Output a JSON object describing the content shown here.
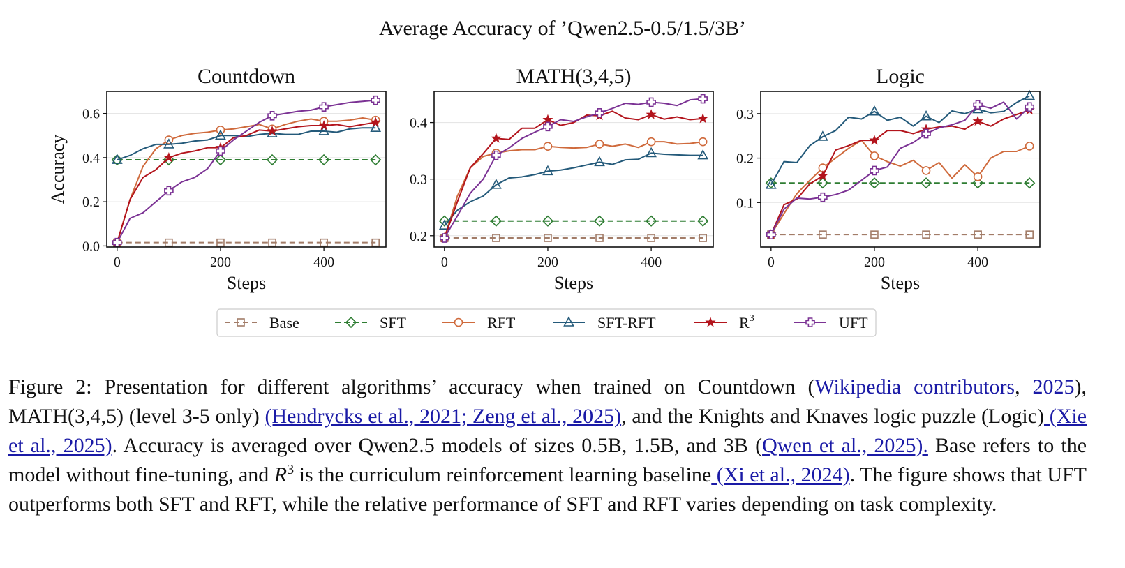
{
  "suptitle": "Average Accuracy of ’Qwen2.5-0.5/1.5/3B’",
  "chart_data": [
    {
      "type": "line",
      "title": "Countdown",
      "xlabel": "Steps",
      "ylabel": "Accuracy",
      "xlim": [
        -20,
        520
      ],
      "ylim": [
        -0.005,
        0.7
      ],
      "xticks": [
        0,
        200,
        400
      ],
      "xtick_labels": [
        "0",
        "200",
        "400"
      ],
      "yticks": [
        0.0,
        0.2,
        0.4,
        0.6
      ],
      "ytick_labels": [
        "0.0",
        "0.2",
        "0.4",
        "0.6"
      ],
      "series": [
        {
          "name": "Base",
          "x": [
            0,
            100,
            200,
            300,
            400,
            500
          ],
          "y": [
            0.015,
            0.015,
            0.015,
            0.015,
            0.015,
            0.015
          ],
          "markers_at": [
            0,
            100,
            200,
            300,
            400,
            500
          ]
        },
        {
          "name": "SFT",
          "x": [
            0,
            100,
            200,
            300,
            400,
            500
          ],
          "y": [
            0.39,
            0.39,
            0.39,
            0.39,
            0.39,
            0.39
          ],
          "markers_at": [
            0,
            100,
            200,
            300,
            400,
            500
          ]
        },
        {
          "name": "RFT",
          "x": [
            0,
            25,
            50,
            75,
            100,
            125,
            150,
            175,
            200,
            225,
            250,
            275,
            300,
            325,
            350,
            375,
            400,
            425,
            450,
            475,
            500
          ],
          "y": [
            0.015,
            0.21,
            0.36,
            0.44,
            0.48,
            0.5,
            0.51,
            0.515,
            0.525,
            0.53,
            0.54,
            0.55,
            0.53,
            0.55,
            0.565,
            0.575,
            0.565,
            0.565,
            0.57,
            0.58,
            0.57
          ],
          "markers_at": [
            0,
            100,
            200,
            300,
            400,
            500
          ]
        },
        {
          "name": "SFT-RFT",
          "x": [
            0,
            25,
            50,
            75,
            100,
            125,
            150,
            175,
            200,
            225,
            250,
            275,
            300,
            325,
            350,
            375,
            400,
            425,
            450,
            475,
            500
          ],
          "y": [
            0.39,
            0.41,
            0.44,
            0.46,
            0.46,
            0.465,
            0.475,
            0.48,
            0.5,
            0.5,
            0.495,
            0.505,
            0.51,
            0.505,
            0.505,
            0.52,
            0.52,
            0.515,
            0.53,
            0.535,
            0.535
          ],
          "markers_at": [
            0,
            100,
            200,
            300,
            400,
            500
          ]
        },
        {
          "name": "R³",
          "x": [
            0,
            25,
            50,
            75,
            100,
            125,
            150,
            175,
            200,
            225,
            250,
            275,
            300,
            325,
            350,
            375,
            400,
            425,
            450,
            475,
            500
          ],
          "y": [
            0.015,
            0.21,
            0.31,
            0.345,
            0.4,
            0.42,
            0.43,
            0.445,
            0.445,
            0.49,
            0.5,
            0.525,
            0.52,
            0.53,
            0.54,
            0.545,
            0.545,
            0.55,
            0.54,
            0.55,
            0.56
          ],
          "markers_at": [
            0,
            100,
            200,
            300,
            400,
            500
          ]
        },
        {
          "name": "UFT",
          "x": [
            0,
            25,
            50,
            75,
            100,
            125,
            150,
            175,
            200,
            225,
            250,
            275,
            300,
            325,
            350,
            375,
            400,
            425,
            450,
            475,
            500
          ],
          "y": [
            0.015,
            0.125,
            0.15,
            0.2,
            0.25,
            0.29,
            0.31,
            0.35,
            0.43,
            0.48,
            0.52,
            0.56,
            0.59,
            0.6,
            0.61,
            0.615,
            0.63,
            0.64,
            0.65,
            0.655,
            0.66
          ],
          "markers_at": [
            0,
            100,
            200,
            300,
            400,
            500
          ]
        }
      ]
    },
    {
      "type": "line",
      "title": "MATH(3,4,5)",
      "xlabel": "Steps",
      "ylabel": "",
      "xlim": [
        -20,
        520
      ],
      "ylim": [
        0.18,
        0.455
      ],
      "xticks": [
        0,
        200,
        400
      ],
      "xtick_labels": [
        "0",
        "200",
        "400"
      ],
      "yticks": [
        0.2,
        0.3,
        0.4
      ],
      "ytick_labels": [
        "0.2",
        "0.3",
        "0.4"
      ],
      "series": [
        {
          "name": "Base",
          "x": [
            0,
            100,
            200,
            300,
            400,
            500
          ],
          "y": [
            0.196,
            0.196,
            0.196,
            0.196,
            0.196,
            0.196
          ],
          "markers_at": [
            0,
            100,
            200,
            300,
            400,
            500
          ]
        },
        {
          "name": "SFT",
          "x": [
            0,
            100,
            200,
            300,
            400,
            500
          ],
          "y": [
            0.226,
            0.226,
            0.226,
            0.226,
            0.226,
            0.226
          ],
          "markers_at": [
            0,
            100,
            200,
            300,
            400,
            500
          ]
        },
        {
          "name": "RFT",
          "x": [
            0,
            25,
            50,
            75,
            100,
            125,
            150,
            175,
            200,
            225,
            250,
            275,
            300,
            325,
            350,
            375,
            400,
            425,
            450,
            475,
            500
          ],
          "y": [
            0.196,
            0.27,
            0.32,
            0.34,
            0.346,
            0.35,
            0.352,
            0.352,
            0.358,
            0.356,
            0.355,
            0.356,
            0.362,
            0.358,
            0.362,
            0.356,
            0.366,
            0.366,
            0.362,
            0.363,
            0.366
          ],
          "markers_at": [
            0,
            100,
            200,
            300,
            400,
            500
          ]
        },
        {
          "name": "SFT-RFT",
          "x": [
            0,
            25,
            50,
            75,
            100,
            125,
            150,
            175,
            200,
            225,
            250,
            275,
            300,
            325,
            350,
            375,
            400,
            425,
            450,
            475,
            500
          ],
          "y": [
            0.218,
            0.245,
            0.26,
            0.27,
            0.29,
            0.302,
            0.304,
            0.308,
            0.314,
            0.316,
            0.32,
            0.325,
            0.33,
            0.326,
            0.334,
            0.335,
            0.346,
            0.344,
            0.343,
            0.342,
            0.342
          ],
          "markers_at": [
            0,
            100,
            200,
            300,
            400,
            500
          ]
        },
        {
          "name": "R³",
          "x": [
            0,
            25,
            50,
            75,
            100,
            125,
            150,
            175,
            200,
            225,
            250,
            275,
            300,
            325,
            350,
            375,
            400,
            425,
            450,
            475,
            500
          ],
          "y": [
            0.196,
            0.26,
            0.32,
            0.345,
            0.372,
            0.37,
            0.39,
            0.39,
            0.405,
            0.395,
            0.4,
            0.413,
            0.412,
            0.42,
            0.408,
            0.405,
            0.414,
            0.406,
            0.41,
            0.405,
            0.407
          ],
          "markers_at": [
            0,
            100,
            200,
            300,
            400,
            500
          ]
        },
        {
          "name": "UFT",
          "x": [
            0,
            25,
            50,
            75,
            100,
            125,
            150,
            175,
            200,
            225,
            250,
            275,
            300,
            325,
            350,
            375,
            400,
            425,
            450,
            475,
            500
          ],
          "y": [
            0.196,
            0.235,
            0.275,
            0.3,
            0.342,
            0.355,
            0.372,
            0.383,
            0.393,
            0.405,
            0.402,
            0.41,
            0.417,
            0.425,
            0.434,
            0.432,
            0.436,
            0.434,
            0.43,
            0.44,
            0.442
          ],
          "markers_at": [
            0,
            100,
            200,
            300,
            400,
            500
          ]
        }
      ]
    },
    {
      "type": "line",
      "title": "Logic",
      "xlabel": "Steps",
      "ylabel": "",
      "xlim": [
        -20,
        520
      ],
      "ylim": [
        0.0,
        0.35
      ],
      "xticks": [
        0,
        200,
        400
      ],
      "xtick_labels": [
        "0",
        "200",
        "400"
      ],
      "yticks": [
        0.1,
        0.2,
        0.3
      ],
      "ytick_labels": [
        "0.1",
        "0.2",
        "0.3"
      ],
      "series": [
        {
          "name": "Base",
          "x": [
            0,
            100,
            200,
            300,
            400,
            500
          ],
          "y": [
            0.028,
            0.028,
            0.028,
            0.028,
            0.028,
            0.028
          ],
          "markers_at": [
            0,
            100,
            200,
            300,
            400,
            500
          ]
        },
        {
          "name": "SFT",
          "x": [
            0,
            100,
            200,
            300,
            400,
            500
          ],
          "y": [
            0.144,
            0.144,
            0.144,
            0.144,
            0.144,
            0.144
          ],
          "markers_at": [
            0,
            100,
            200,
            300,
            400,
            500
          ]
        },
        {
          "name": "RFT",
          "x": [
            0,
            25,
            50,
            75,
            100,
            125,
            150,
            175,
            200,
            225,
            250,
            275,
            300,
            325,
            350,
            375,
            400,
            425,
            450,
            475,
            500
          ],
          "y": [
            0.028,
            0.075,
            0.12,
            0.15,
            0.178,
            0.2,
            0.222,
            0.24,
            0.205,
            0.192,
            0.182,
            0.195,
            0.172,
            0.19,
            0.155,
            0.185,
            0.158,
            0.2,
            0.215,
            0.215,
            0.227
          ],
          "markers_at": [
            0,
            100,
            200,
            300,
            400,
            500
          ]
        },
        {
          "name": "SFT-RFT",
          "x": [
            0,
            25,
            50,
            75,
            100,
            125,
            150,
            175,
            200,
            225,
            250,
            275,
            300,
            325,
            350,
            375,
            400,
            425,
            450,
            475,
            500
          ],
          "y": [
            0.14,
            0.192,
            0.19,
            0.228,
            0.248,
            0.262,
            0.292,
            0.288,
            0.305,
            0.285,
            0.292,
            0.272,
            0.294,
            0.28,
            0.306,
            0.3,
            0.31,
            0.302,
            0.305,
            0.325,
            0.34
          ],
          "markers_at": [
            0,
            100,
            200,
            300,
            400,
            500
          ]
        },
        {
          "name": "R³",
          "x": [
            0,
            25,
            50,
            75,
            100,
            125,
            150,
            175,
            200,
            225,
            250,
            275,
            300,
            325,
            350,
            375,
            400,
            425,
            450,
            475,
            500
          ],
          "y": [
            0.028,
            0.095,
            0.108,
            0.142,
            0.16,
            0.218,
            0.228,
            0.24,
            0.24,
            0.262,
            0.262,
            0.255,
            0.265,
            0.27,
            0.272,
            0.265,
            0.283,
            0.272,
            0.288,
            0.298,
            0.308
          ],
          "markers_at": [
            0,
            100,
            200,
            300,
            400,
            500
          ]
        },
        {
          "name": "UFT",
          "x": [
            0,
            25,
            50,
            75,
            100,
            125,
            150,
            175,
            200,
            225,
            250,
            275,
            300,
            325,
            350,
            375,
            400,
            425,
            450,
            475,
            500
          ],
          "y": [
            0.028,
            0.085,
            0.11,
            0.108,
            0.112,
            0.118,
            0.128,
            0.15,
            0.172,
            0.18,
            0.222,
            0.235,
            0.255,
            0.268,
            0.275,
            0.285,
            0.32,
            0.312,
            0.326,
            0.288,
            0.315
          ],
          "markers_at": [
            0,
            100,
            200,
            300,
            400,
            500
          ]
        }
      ]
    }
  ],
  "legend": {
    "entries": [
      {
        "name": "Base",
        "label": "Base"
      },
      {
        "name": "SFT",
        "label": "SFT"
      },
      {
        "name": "RFT",
        "label": "RFT"
      },
      {
        "name": "SFT-RFT",
        "label": "SFT-RFT"
      },
      {
        "name": "R3",
        "label": "R",
        "sup": "3"
      },
      {
        "name": "UFT",
        "label": "UFT"
      }
    ]
  },
  "styles": {
    "Base": {
      "color": "#a27c68",
      "dash": true,
      "marker": "square"
    },
    "SFT": {
      "color": "#2e7d32",
      "dash": true,
      "marker": "diamond"
    },
    "RFT": {
      "color": "#cf6a3c",
      "dash": false,
      "marker": "circle"
    },
    "SFT-RFT": {
      "color": "#245a7a",
      "dash": false,
      "marker": "triangle"
    },
    "R³": {
      "color": "#b3141c",
      "dash": false,
      "marker": "star"
    },
    "UFT": {
      "color": "#7b3294",
      "dash": false,
      "marker": "plus"
    }
  },
  "caption": {
    "prefix": "Figure 2:  Presentation for different algorithms’ accuracy when trained on Countdown (",
    "cite_wiki_1": "Wikipedia contributors",
    "sep_1": ", ",
    "cite_wiki_2": "2025",
    "text_2": "), MATH(3,4,5) (level 3-5 only) ",
    "cite_math": "(Hendrycks et al., 2021; Zeng et al., 2025)",
    "text_3": ", and the Knights and Knaves logic puzzle (Logic)",
    "cite_logic": " (Xie et al., 2025)",
    "text_4": ". Accuracy is averaged over Qwen2.5 models of sizes 0.5B, 1.5B, and 3B (",
    "cite_qwen": "Qwen et al., 2025).",
    "text_5": " Base refers to the model without fine-tuning, and ",
    "r_symbol": "R",
    "r_sup": "3",
    "text_6": " is the curriculum reinforcement learning baseline",
    "cite_xi": " (Xi et al., 2024)",
    "text_7": ". The figure shows that UFT outperforms both SFT and RFT, while the relative performance of SFT and RFT varies depending on task complexity."
  }
}
